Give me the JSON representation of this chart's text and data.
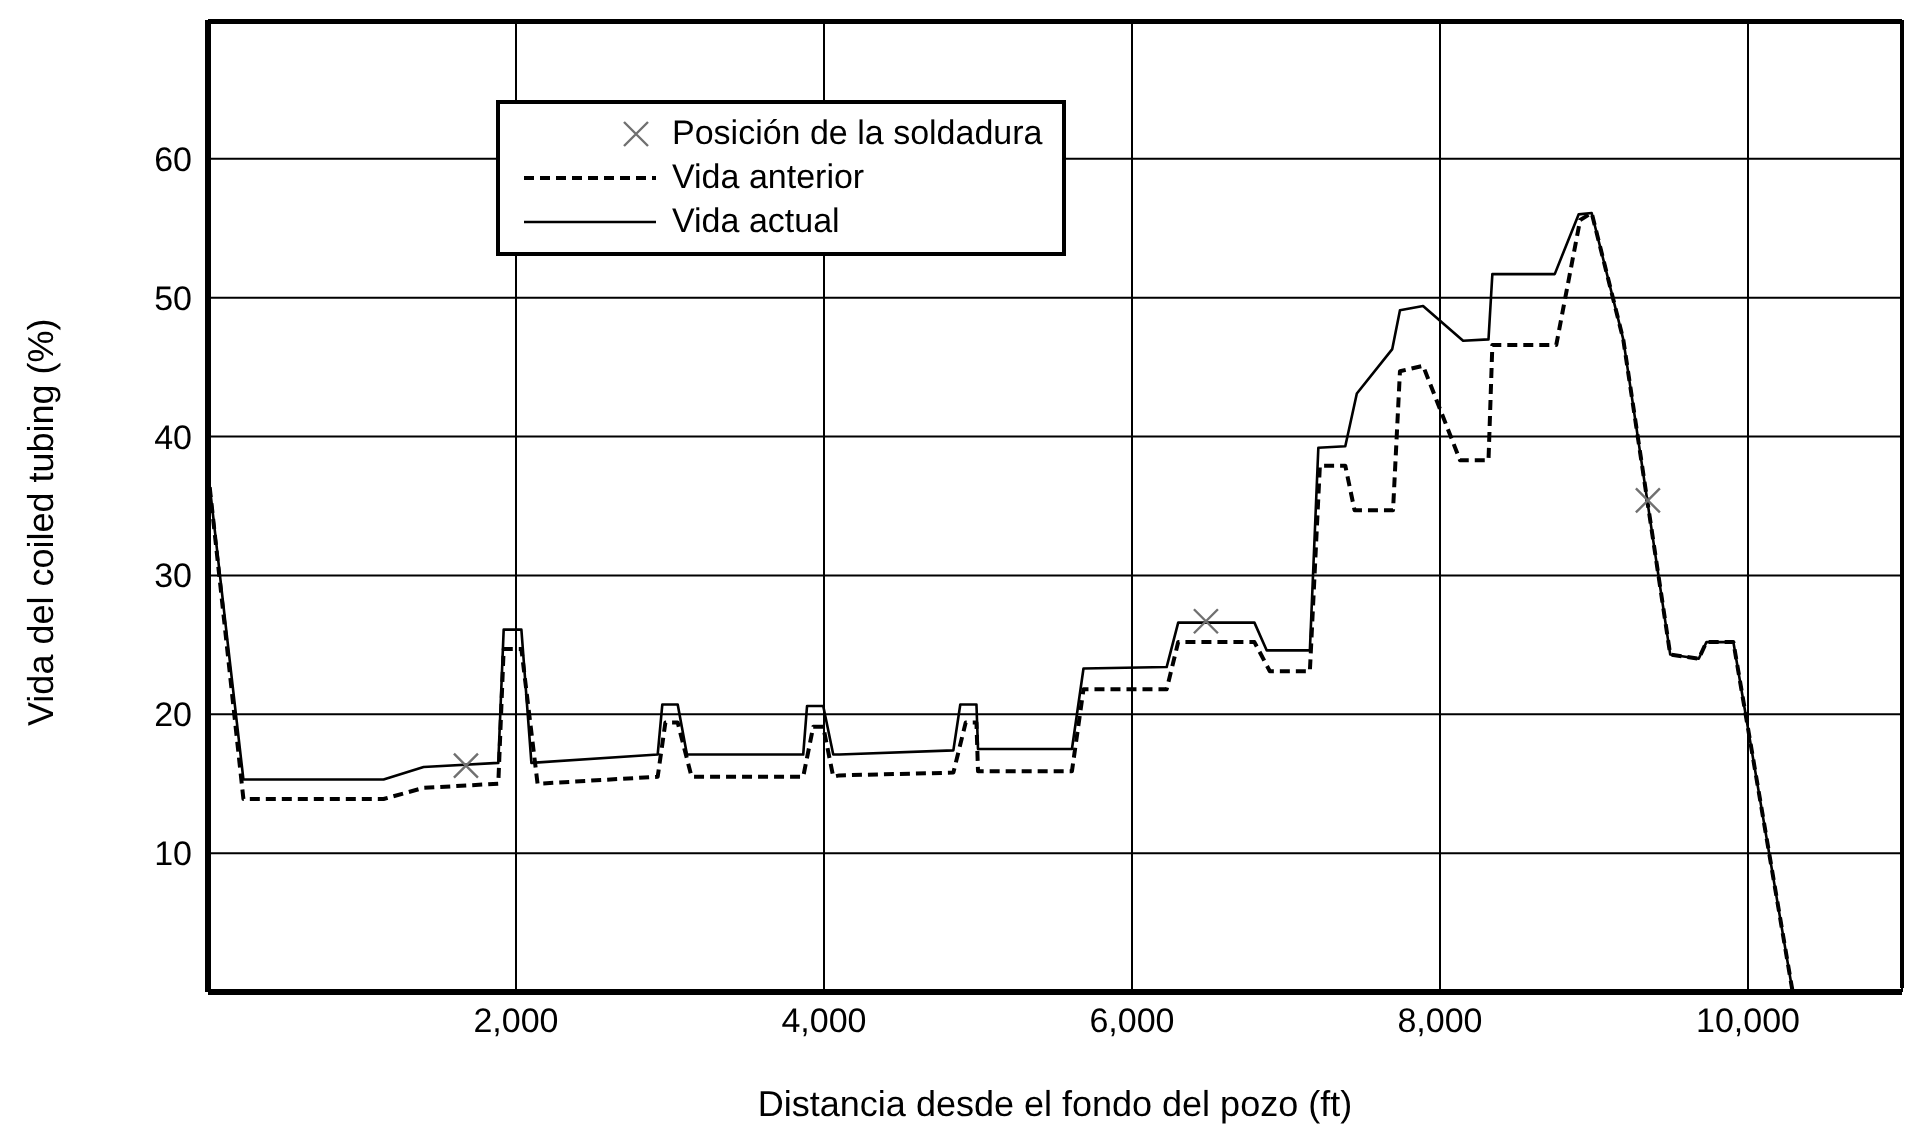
{
  "chart_data": {
    "type": "line",
    "xlabel": "Distancia desde el fondo del pozo (ft)",
    "ylabel": "Vida del coiled tubing (%)",
    "xlim": [
      0,
      11000
    ],
    "ylim": [
      0,
      70
    ],
    "xticks": [
      {
        "value": 2000,
        "label": "2,000"
      },
      {
        "value": 4000,
        "label": "4,000"
      },
      {
        "value": 6000,
        "label": "6,000"
      },
      {
        "value": 8000,
        "label": "8,000"
      },
      {
        "value": 10000,
        "label": "10,000"
      }
    ],
    "yticks": [
      10,
      20,
      30,
      40,
      50,
      60
    ],
    "grid": true,
    "legend": "top left",
    "series": [
      {
        "name": "Posición de la soldadura",
        "type": "scatter",
        "marker": "cross",
        "color": "#707070",
        "x": [
          1675,
          6480,
          9350
        ],
        "values": [
          16.3,
          26.7,
          35.4
        ]
      },
      {
        "name": "Vida anterior",
        "line_style": "dashed",
        "marker": "none",
        "color": "#000000",
        "x": [
          0,
          230,
          1140,
          1400,
          1885,
          1920,
          2035,
          2140,
          2920,
          2970,
          3050,
          3140,
          3865,
          3930,
          3995,
          4060,
          4100,
          4840,
          4920,
          4990,
          5000,
          5610,
          5685,
          6225,
          6300,
          6795,
          6895,
          7155,
          7220,
          7385,
          7445,
          7695,
          7740,
          7890,
          8130,
          8315,
          8340,
          8755,
          8910,
          8985,
          9190,
          9495,
          9680,
          9730,
          9905,
          10290
        ],
        "values": [
          37.5,
          13.9,
          13.9,
          14.7,
          15.0,
          24.7,
          24.7,
          15.0,
          15.5,
          19.4,
          19.4,
          15.5,
          15.5,
          19.1,
          19.1,
          15.5,
          15.6,
          15.8,
          19.4,
          19.4,
          15.9,
          15.9,
          21.8,
          21.8,
          25.2,
          25.2,
          23.1,
          23.1,
          37.9,
          37.9,
          34.7,
          34.7,
          44.7,
          45.1,
          38.3,
          38.3,
          46.6,
          46.6,
          55.6,
          56.1,
          47.0,
          24.3,
          24.0,
          25.2,
          25.2,
          0
        ]
      },
      {
        "name": "Vida actual",
        "line_style": "solid",
        "marker": "none",
        "color": "#000000",
        "x": [
          0,
          230,
          1140,
          1400,
          1885,
          1920,
          2035,
          2100,
          2920,
          2950,
          3050,
          3110,
          3865,
          3890,
          3995,
          4060,
          4100,
          4840,
          4885,
          4990,
          5000,
          5610,
          5685,
          6225,
          6300,
          6795,
          6875,
          7155,
          7210,
          7385,
          7460,
          7690,
          7740,
          7890,
          8150,
          8315,
          8340,
          8745,
          8900,
          8985,
          9190,
          9495,
          9680,
          9730,
          9905,
          10290
        ],
        "values": [
          37.5,
          15.3,
          15.3,
          16.2,
          16.5,
          26.1,
          26.1,
          16.5,
          17.1,
          20.7,
          20.7,
          17.1,
          17.1,
          20.6,
          20.6,
          17.1,
          17.1,
          17.4,
          20.7,
          20.7,
          17.5,
          17.5,
          23.3,
          23.4,
          26.6,
          26.6,
          24.6,
          24.6,
          39.2,
          39.3,
          43.1,
          46.3,
          49.1,
          49.4,
          46.9,
          47.0,
          51.7,
          51.7,
          56.0,
          56.1,
          47.0,
          24.3,
          24.0,
          25.2,
          25.2,
          0
        ]
      }
    ]
  }
}
